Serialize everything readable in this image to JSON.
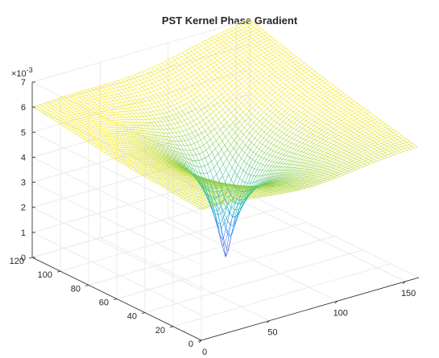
{
  "chart_data": {
    "type": "surface",
    "title": "PST Kernel Phase Gradient",
    "xlabel": "",
    "ylabel": "",
    "zlabel": "",
    "z_exponent_label": "×10",
    "z_exponent_value": "-3",
    "xlim": [
      0,
      160
    ],
    "ylim": [
      0,
      120
    ],
    "zlim": [
      0,
      7
    ],
    "x_ticks": [
      "0",
      "50",
      "100",
      "150"
    ],
    "y_ticks": [
      "0",
      "20",
      "40",
      "60",
      "80",
      "100",
      "120"
    ],
    "z_ticks": [
      "0",
      "1",
      "2",
      "3",
      "4",
      "5",
      "6",
      "7"
    ],
    "grid": true,
    "colormap": "parula",
    "colors": {
      "low": "#3e26a8",
      "mid_low": "#2e87f7",
      "mid": "#14beb8",
      "mid_high": "#81cc59",
      "high": "#f5e721"
    },
    "surface": {
      "x_range": [
        1,
        160
      ],
      "y_range": [
        1,
        120
      ],
      "center": [
        80,
        60
      ],
      "min_value": 0.0001,
      "plateau_value": 0.0052,
      "corner_values": {
        "x0_y0": 0.0052,
        "x0_y120": 0.006,
        "x160_y120": 0.007,
        "x160_y0": 0.0052
      }
    }
  }
}
